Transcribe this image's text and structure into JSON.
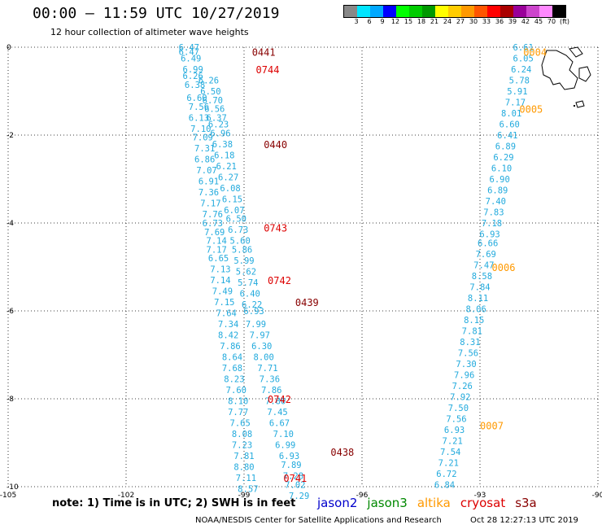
{
  "header": {
    "title": "00:00 – 11:59 UTC 10/27/2019",
    "subtitle": "12 hour collection of altimeter wave heights"
  },
  "colors": {
    "jason2": "#0000cc",
    "jason3": "#008800",
    "altika": "#ff9900",
    "cryosat": "#dd0000",
    "s3a": "#880000",
    "data_values": "#22aadd",
    "grid": "#000000",
    "land": "#000000"
  },
  "colorscale": {
    "labels": [
      "3",
      "6",
      "9",
      "12",
      "15",
      "18",
      "21",
      "24",
      "27",
      "30",
      "33",
      "36",
      "39",
      "42",
      "45",
      "70",
      "(ft)"
    ],
    "colors": [
      "#888888",
      "#00e5ff",
      "#00a8ff",
      "#0000ff",
      "#00ff00",
      "#00cc00",
      "#009900",
      "#ffff00",
      "#ffcc00",
      "#ff9900",
      "#ff5500",
      "#ff0000",
      "#aa0000",
      "#990099",
      "#cc44cc",
      "#ff88ff",
      "#000000"
    ]
  },
  "footer": {
    "note": "note: 1) Time is in UTC; 2) SWH is in feet",
    "legend": [
      {
        "label": "jason2",
        "color": "#0000cc"
      },
      {
        "label": "jason3",
        "color": "#008800"
      },
      {
        "label": "altika",
        "color": "#ff9900"
      },
      {
        "label": "cryosat",
        "color": "#dd0000"
      },
      {
        "label": "s3a",
        "color": "#880000"
      }
    ],
    "credit": "NOAA/NESDIS Center for Satellite Applications and Research",
    "generated": "Oct 28 12:27:13 UTC 2019"
  },
  "chart_data": {
    "type": "scatter",
    "title": "00:00 – 11:59 UTC 10/27/2019",
    "subtitle": "12 hour collection of altimeter wave heights",
    "xlim": [
      -105,
      -90
    ],
    "ylim": [
      -10,
      0
    ],
    "x_ticks": [
      -105,
      -102,
      -99,
      -96,
      -93,
      -90
    ],
    "x_tick_labels": [
      "-105",
      "-102",
      "-99",
      "-96",
      "-93",
      "-90"
    ],
    "y_ticks": [
      0,
      -2,
      -4,
      -6,
      -8,
      -10
    ],
    "y_tick_labels": [
      "0",
      "-2",
      "-4",
      "-6",
      "-8",
      "-10"
    ],
    "grid": true,
    "units": "ft",
    "pass_labels": [
      {
        "text": "0441",
        "lon": -98.5,
        "lat": -0.1,
        "satellite": "s3a"
      },
      {
        "text": "0744",
        "lon": -98.4,
        "lat": -0.5,
        "satellite": "cryosat"
      },
      {
        "text": "0440",
        "lon": -98.2,
        "lat": -2.2,
        "satellite": "s3a"
      },
      {
        "text": "0743",
        "lon": -98.2,
        "lat": -4.1,
        "satellite": "cryosat"
      },
      {
        "text": "0742",
        "lon": -98.1,
        "lat": -5.3,
        "satellite": "cryosat"
      },
      {
        "text": "0439",
        "lon": -97.4,
        "lat": -5.8,
        "satellite": "s3a"
      },
      {
        "text": "0742",
        "lon": -98.1,
        "lat": -8.0,
        "satellite": "cryosat"
      },
      {
        "text": "0438",
        "lon": -96.5,
        "lat": -9.2,
        "satellite": "s3a"
      },
      {
        "text": "0741",
        "lon": -97.7,
        "lat": -9.8,
        "satellite": "cryosat"
      },
      {
        "text": "0004",
        "lon": -91.6,
        "lat": -0.1,
        "satellite": "altika"
      },
      {
        "text": "0005",
        "lon": -91.7,
        "lat": -1.4,
        "satellite": "altika"
      },
      {
        "text": "0006",
        "lon": -92.4,
        "lat": -5.0,
        "satellite": "altika"
      },
      {
        "text": "0007",
        "lon": -92.7,
        "lat": -8.6,
        "satellite": "altika"
      }
    ],
    "series": [
      {
        "name": "s3a pass 0441-0438 (west track)",
        "satellite": "s3a",
        "points": [
          {
            "lon": -100.4,
            "lat": 0.0,
            "swh": "6.47"
          },
          {
            "lon": -100.4,
            "lat": -0.1,
            "swh": "6.47"
          },
          {
            "lon": -100.35,
            "lat": -0.25,
            "swh": "6.49"
          },
          {
            "lon": -100.3,
            "lat": -0.5,
            "swh": "6.99"
          },
          {
            "lon": -100.3,
            "lat": -0.65,
            "swh": "6.26"
          },
          {
            "lon": -100.25,
            "lat": -0.85,
            "swh": "6.38"
          },
          {
            "lon": -100.2,
            "lat": -1.15,
            "swh": "6.60"
          },
          {
            "lon": -100.15,
            "lat": -1.35,
            "swh": "7.56"
          },
          {
            "lon": -100.15,
            "lat": -1.6,
            "swh": "6.13"
          },
          {
            "lon": -100.1,
            "lat": -1.85,
            "swh": "7.10"
          },
          {
            "lon": -100.05,
            "lat": -2.05,
            "swh": "7.09"
          },
          {
            "lon": -100.0,
            "lat": -2.3,
            "swh": "7.31"
          },
          {
            "lon": -100.0,
            "lat": -2.55,
            "swh": "6.86"
          },
          {
            "lon": -99.95,
            "lat": -2.8,
            "swh": "7.07"
          },
          {
            "lon": -99.9,
            "lat": -3.05,
            "swh": "6.91"
          },
          {
            "lon": -99.9,
            "lat": -3.3,
            "swh": "7.36"
          },
          {
            "lon": -99.85,
            "lat": -3.55,
            "swh": "7.17"
          },
          {
            "lon": -99.8,
            "lat": -3.8,
            "swh": "7.76"
          },
          {
            "lon": -99.8,
            "lat": -4.0,
            "swh": "6.73"
          },
          {
            "lon": -99.75,
            "lat": -4.2,
            "swh": "7.69"
          },
          {
            "lon": -99.7,
            "lat": -4.4,
            "swh": "7.14"
          },
          {
            "lon": -99.7,
            "lat": -4.6,
            "swh": "7.17"
          },
          {
            "lon": -99.65,
            "lat": -4.8,
            "swh": "6.65"
          },
          {
            "lon": -99.6,
            "lat": -5.05,
            "swh": "7.13"
          },
          {
            "lon": -99.6,
            "lat": -5.3,
            "swh": "7.14"
          },
          {
            "lon": -99.55,
            "lat": -5.55,
            "swh": "7.49"
          },
          {
            "lon": -99.5,
            "lat": -5.8,
            "swh": "7.15"
          },
          {
            "lon": -99.45,
            "lat": -6.05,
            "swh": "7.64"
          },
          {
            "lon": -99.4,
            "lat": -6.3,
            "swh": "7.34"
          },
          {
            "lon": -99.4,
            "lat": -6.55,
            "swh": "8.42"
          },
          {
            "lon": -99.35,
            "lat": -6.8,
            "swh": "7.86"
          },
          {
            "lon": -99.3,
            "lat": -7.05,
            "swh": "8.64"
          },
          {
            "lon": -99.3,
            "lat": -7.3,
            "swh": "7.68"
          },
          {
            "lon": -99.25,
            "lat": -7.55,
            "swh": "8.23"
          },
          {
            "lon": -99.2,
            "lat": -7.8,
            "swh": "7.60"
          },
          {
            "lon": -99.15,
            "lat": -8.05,
            "swh": "8.10"
          },
          {
            "lon": -99.15,
            "lat": -8.3,
            "swh": "7.77"
          },
          {
            "lon": -99.1,
            "lat": -8.55,
            "swh": "7.65"
          },
          {
            "lon": -99.05,
            "lat": -8.8,
            "swh": "8.08"
          },
          {
            "lon": -99.05,
            "lat": -9.05,
            "swh": "7.23"
          },
          {
            "lon": -99.0,
            "lat": -9.3,
            "swh": "7.81"
          },
          {
            "lon": -99.0,
            "lat": -9.55,
            "swh": "8.80"
          },
          {
            "lon": -98.95,
            "lat": -9.8,
            "swh": "7.11"
          },
          {
            "lon": -98.9,
            "lat": -10.05,
            "swh": "8.57"
          }
        ]
      },
      {
        "name": "cryosat pass 0744-0741 (east of west track)",
        "satellite": "cryosat",
        "points": [
          {
            "lon": -99.9,
            "lat": -0.75,
            "swh": "6.26"
          },
          {
            "lon": -99.85,
            "lat": -1.0,
            "swh": "6.50"
          },
          {
            "lon": -99.8,
            "lat": -1.2,
            "swh": "6.70"
          },
          {
            "lon": -99.75,
            "lat": -1.4,
            "swh": "6.56"
          },
          {
            "lon": -99.7,
            "lat": -1.6,
            "swh": "6.37"
          },
          {
            "lon": -99.65,
            "lat": -1.75,
            "swh": "6.23"
          },
          {
            "lon": -99.6,
            "lat": -1.95,
            "swh": "6.96"
          },
          {
            "lon": -99.55,
            "lat": -2.2,
            "swh": "6.38"
          },
          {
            "lon": -99.5,
            "lat": -2.45,
            "swh": "6.18"
          },
          {
            "lon": -99.45,
            "lat": -2.7,
            "swh": "6.21"
          },
          {
            "lon": -99.4,
            "lat": -2.95,
            "swh": "6.27"
          },
          {
            "lon": -99.35,
            "lat": -3.2,
            "swh": "6.08"
          },
          {
            "lon": -99.3,
            "lat": -3.45,
            "swh": "6.15"
          },
          {
            "lon": -99.25,
            "lat": -3.7,
            "swh": "6.07"
          },
          {
            "lon": -99.2,
            "lat": -3.9,
            "swh": "6.50"
          },
          {
            "lon": -99.15,
            "lat": -4.15,
            "swh": "6.73"
          },
          {
            "lon": -99.1,
            "lat": -4.4,
            "swh": "5.60"
          },
          {
            "lon": -99.05,
            "lat": -4.6,
            "swh": "5.86"
          },
          {
            "lon": -99.0,
            "lat": -4.85,
            "swh": "5.99"
          },
          {
            "lon": -98.95,
            "lat": -5.1,
            "swh": "5.62"
          },
          {
            "lon": -98.9,
            "lat": -5.35,
            "swh": "5.74"
          },
          {
            "lon": -98.85,
            "lat": -5.6,
            "swh": "6.40"
          },
          {
            "lon": -98.8,
            "lat": -5.85,
            "swh": "6.22"
          },
          {
            "lon": -98.75,
            "lat": -6.0,
            "swh": "6.93"
          },
          {
            "lon": -98.7,
            "lat": -6.3,
            "swh": "7.99"
          },
          {
            "lon": -98.6,
            "lat": -6.55,
            "swh": "7.97"
          },
          {
            "lon": -98.55,
            "lat": -6.8,
            "swh": "6.30"
          },
          {
            "lon": -98.5,
            "lat": -7.05,
            "swh": "8.00"
          },
          {
            "lon": -98.4,
            "lat": -7.3,
            "swh": "7.71"
          },
          {
            "lon": -98.35,
            "lat": -7.55,
            "swh": "7.36"
          },
          {
            "lon": -98.3,
            "lat": -7.8,
            "swh": "7.86"
          },
          {
            "lon": -98.2,
            "lat": -8.05,
            "swh": "7.80"
          },
          {
            "lon": -98.15,
            "lat": -8.3,
            "swh": "7.45"
          },
          {
            "lon": -98.1,
            "lat": -8.55,
            "swh": "6.67"
          },
          {
            "lon": -98.0,
            "lat": -8.8,
            "swh": "7.10"
          },
          {
            "lon": -97.95,
            "lat": -9.05,
            "swh": "6.99"
          },
          {
            "lon": -97.85,
            "lat": -9.3,
            "swh": "6.93"
          },
          {
            "lon": -97.8,
            "lat": -9.5,
            "swh": "7.89"
          },
          {
            "lon": -97.75,
            "lat": -9.75,
            "swh": "7.28"
          },
          {
            "lon": -97.7,
            "lat": -9.95,
            "swh": "7.02"
          },
          {
            "lon": -97.6,
            "lat": -10.2,
            "swh": "7.29"
          }
        ]
      },
      {
        "name": "altika pass 0004-0007 (east track)",
        "satellite": "altika",
        "points": [
          {
            "lon": -91.9,
            "lat": 0.0,
            "swh": "6.61"
          },
          {
            "lon": -91.9,
            "lat": -0.25,
            "swh": "6.05"
          },
          {
            "lon": -91.95,
            "lat": -0.5,
            "swh": "6.24"
          },
          {
            "lon": -92.0,
            "lat": -0.75,
            "swh": "5.78"
          },
          {
            "lon": -92.05,
            "lat": -1.0,
            "swh": "5.91"
          },
          {
            "lon": -92.1,
            "lat": -1.25,
            "swh": "7.17"
          },
          {
            "lon": -92.2,
            "lat": -1.5,
            "swh": "8.01"
          },
          {
            "lon": -92.25,
            "lat": -1.75,
            "swh": "6.60"
          },
          {
            "lon": -92.3,
            "lat": -2.0,
            "swh": "6.41"
          },
          {
            "lon": -92.35,
            "lat": -2.25,
            "swh": "6.89"
          },
          {
            "lon": -92.4,
            "lat": -2.5,
            "swh": "6.29"
          },
          {
            "lon": -92.45,
            "lat": -2.75,
            "swh": "6.10"
          },
          {
            "lon": -92.5,
            "lat": -3.0,
            "swh": "6.90"
          },
          {
            "lon": -92.55,
            "lat": -3.25,
            "swh": "6.89"
          },
          {
            "lon": -92.6,
            "lat": -3.5,
            "swh": "7.40"
          },
          {
            "lon": -92.65,
            "lat": -3.75,
            "swh": "7.83"
          },
          {
            "lon": -92.7,
            "lat": -4.0,
            "swh": "7.18"
          },
          {
            "lon": -92.75,
            "lat": -4.25,
            "swh": "6.93"
          },
          {
            "lon": -92.8,
            "lat": -4.45,
            "swh": "6.66"
          },
          {
            "lon": -92.85,
            "lat": -4.7,
            "swh": "7.69"
          },
          {
            "lon": -92.9,
            "lat": -4.95,
            "swh": "7.47"
          },
          {
            "lon": -92.95,
            "lat": -5.2,
            "swh": "8.58"
          },
          {
            "lon": -93.0,
            "lat": -5.45,
            "swh": "7.84"
          },
          {
            "lon": -93.05,
            "lat": -5.7,
            "swh": "8.11"
          },
          {
            "lon": -93.1,
            "lat": -5.95,
            "swh": "8.06"
          },
          {
            "lon": -93.15,
            "lat": -6.2,
            "swh": "8.15"
          },
          {
            "lon": -93.2,
            "lat": -6.45,
            "swh": "7.81"
          },
          {
            "lon": -93.25,
            "lat": -6.7,
            "swh": "8.31"
          },
          {
            "lon": -93.3,
            "lat": -6.95,
            "swh": "7.56"
          },
          {
            "lon": -93.35,
            "lat": -7.2,
            "swh": "7.30"
          },
          {
            "lon": -93.4,
            "lat": -7.45,
            "swh": "7.96"
          },
          {
            "lon": -93.45,
            "lat": -7.7,
            "swh": "7.26"
          },
          {
            "lon": -93.5,
            "lat": -7.95,
            "swh": "7.92"
          },
          {
            "lon": -93.55,
            "lat": -8.2,
            "swh": "7.50"
          },
          {
            "lon": -93.6,
            "lat": -8.45,
            "swh": "7.56"
          },
          {
            "lon": -93.65,
            "lat": -8.7,
            "swh": "6.93"
          },
          {
            "lon": -93.7,
            "lat": -8.95,
            "swh": "7.21"
          },
          {
            "lon": -93.75,
            "lat": -9.2,
            "swh": "7.54"
          },
          {
            "lon": -93.8,
            "lat": -9.45,
            "swh": "7.21"
          },
          {
            "lon": -93.85,
            "lat": -9.7,
            "swh": "6.72"
          },
          {
            "lon": -93.9,
            "lat": -9.95,
            "swh": "6.84"
          }
        ]
      }
    ]
  }
}
